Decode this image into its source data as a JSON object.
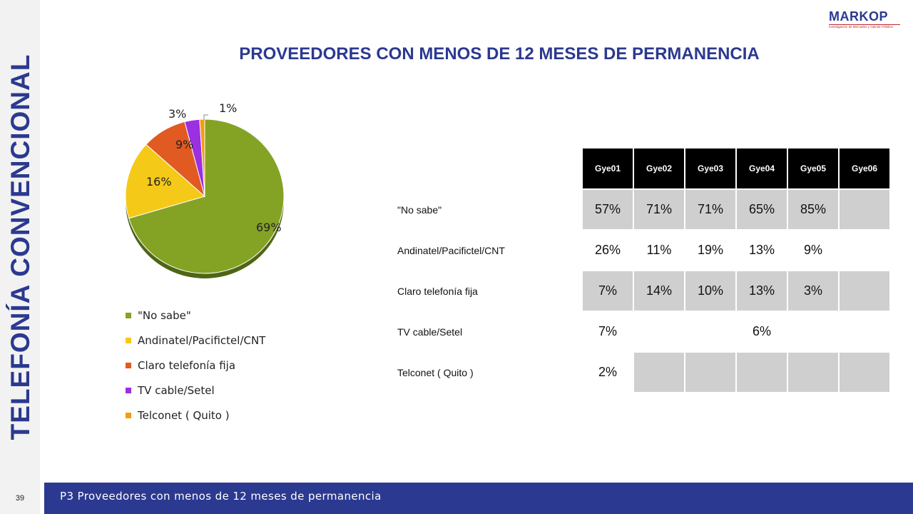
{
  "side_title": "TELEFONÍA CONVENCIONAL",
  "logo": {
    "name": "MARKOP",
    "tagline": "Investigación de Mercados y Opinión Pública"
  },
  "title": "PROVEEDORES CON MENOS DE 12 MESES DE PERMANENCIA",
  "colors": {
    "brand": "#2b3990",
    "accent": "#c0272d"
  },
  "chart_data": {
    "type": "pie",
    "categories": [
      "\"No sabe\"",
      "Andinatel/Pacifictel/CNT",
      "Claro  telefonía  fija",
      "TV cable/Setel",
      "Telconet  ( Quito )"
    ],
    "values": [
      69,
      16,
      9,
      3,
      1
    ],
    "data_labels": [
      "69%",
      "16%",
      "9%",
      "3%",
      "1%"
    ],
    "colors": [
      "#84a325",
      "#f5c918",
      "#e05a22",
      "#9b30e0",
      "#f39c12"
    ],
    "legend_position": "bottom"
  },
  "table": {
    "columns": [
      "Gye01",
      "Gye02",
      "Gye03",
      "Gye04",
      "Gye05",
      "Gye06"
    ],
    "rows": [
      {
        "label": "\"No sabe\"",
        "values": [
          "57%",
          "71%",
          "71%",
          "65%",
          "85%",
          ""
        ]
      },
      {
        "label": "Andinatel/Pacifictel/CNT",
        "values": [
          "26%",
          "11%",
          "19%",
          "13%",
          "9%",
          ""
        ]
      },
      {
        "label": "Claro  telefonía  fija",
        "values": [
          "7%",
          "14%",
          "10%",
          "13%",
          "3%",
          ""
        ]
      },
      {
        "label": "TV cable/Setel",
        "values": [
          "7%",
          "",
          "",
          "6%",
          "",
          ""
        ]
      },
      {
        "label": "Telconet  ( Quito )",
        "values": [
          "2%",
          "",
          "",
          "",
          "",
          ""
        ]
      }
    ]
  },
  "footer": "P3 Proveedores con menos de 12 meses de permanencia",
  "page_number": "39"
}
